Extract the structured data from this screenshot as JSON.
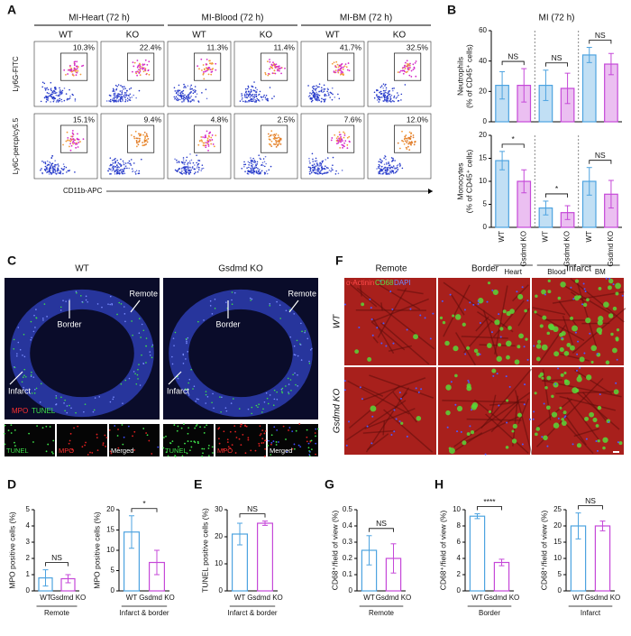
{
  "panel_labels": [
    "A",
    "B",
    "C",
    "D",
    "E",
    "F",
    "G",
    "H"
  ],
  "flow": {
    "columns": [
      {
        "title": "MI-Heart (72 h)",
        "groups": [
          "WT",
          "KO"
        ]
      },
      {
        "title": "MI-Blood (72 h)",
        "groups": [
          "WT",
          "KO"
        ]
      },
      {
        "title": "MI-BM (72 h)",
        "groups": [
          "WT",
          "KO"
        ]
      }
    ],
    "rows": [
      {
        "y_label": "Ly6G-FITC",
        "percentages": [
          "10.3%",
          "22.4%",
          "11.3%",
          "11.4%",
          "41.7%",
          "32.5%"
        ]
      },
      {
        "y_label": "Ly6C-percp/cy5.5",
        "percentages": [
          "15.1%",
          "9.4%",
          "4.8%",
          "2.5%",
          "7.6%",
          "12.0%"
        ]
      }
    ],
    "x_label": "CD11b-APC"
  },
  "tunel_mpo": {
    "columns": [
      "WT",
      "Gsdmd KO"
    ],
    "regions": [
      "Remote",
      "Border",
      "Infarct"
    ],
    "stains": [
      "MPO",
      "TUNEL"
    ],
    "insets": [
      "TUNEL",
      "MPO",
      "Merged"
    ]
  },
  "histology": {
    "stains": [
      "α-Actinin",
      "CD68",
      "DAPI"
    ],
    "columns": [
      "Remote",
      "Border",
      "Infarct"
    ],
    "rows": [
      "WT",
      "Gsdmd KO"
    ]
  },
  "chart_data": [
    {
      "type": "bar",
      "title": "MI (72 h)",
      "ylabel": [
        "Neutrophils",
        "(% of CD45⁺ cells)"
      ],
      "series": [
        {
          "name": "WT",
          "color": "#4da3e0",
          "values": [
            24,
            24,
            44
          ],
          "errors": [
            9,
            10,
            5
          ]
        },
        {
          "name": "Gsdmd KO",
          "color": "#c548d8",
          "values": [
            24,
            22,
            38
          ],
          "errors": [
            11,
            10,
            7
          ]
        }
      ],
      "annotations": [
        "NS",
        "NS",
        "NS"
      ],
      "ylim": [
        0,
        60
      ],
      "yticks": [
        0,
        20,
        40,
        60
      ]
    },
    {
      "type": "bar",
      "ylabel": [
        "Monocytes",
        "(% of CD45⁺ cells)"
      ],
      "categories": [
        "Heart",
        "Blood",
        "BM"
      ],
      "series": [
        {
          "name": "WT",
          "color": "#4da3e0",
          "values": [
            14.5,
            4.2,
            10
          ],
          "errors": [
            2,
            1.5,
            3
          ]
        },
        {
          "name": "Gsdmd KO",
          "color": "#c548d8",
          "values": [
            10,
            3.2,
            7.2
          ],
          "errors": [
            2.5,
            1.5,
            3
          ]
        }
      ],
      "annotations": [
        "*",
        "*",
        "NS"
      ],
      "ylim": [
        0,
        20
      ],
      "yticks": [
        0,
        5,
        10,
        15,
        20
      ]
    },
    {
      "type": "bar",
      "ylabel": [
        "MPO positive cells (%)"
      ],
      "categories": [
        "Remote"
      ],
      "series": [
        {
          "name": "WT",
          "color": "#4da3e0",
          "values": [
            0.8
          ],
          "errors": [
            0.5
          ]
        },
        {
          "name": "Gsdmd KO",
          "color": "#c548d8",
          "values": [
            0.75
          ],
          "errors": [
            0.25
          ]
        }
      ],
      "annotations": [
        "NS"
      ],
      "ylim": [
        0,
        5
      ],
      "yticks": [
        0,
        1,
        2,
        3,
        4,
        5
      ]
    },
    {
      "type": "bar",
      "ylabel": [
        "MPO positive cells (%)"
      ],
      "categories": [
        "Infarct & border"
      ],
      "series": [
        {
          "name": "WT",
          "color": "#4da3e0",
          "values": [
            14.5
          ],
          "errors": [
            4
          ]
        },
        {
          "name": "Gsdmd KO",
          "color": "#c548d8",
          "values": [
            7
          ],
          "errors": [
            3
          ]
        }
      ],
      "annotations": [
        "*"
      ],
      "ylim": [
        0,
        20
      ],
      "yticks": [
        0,
        5,
        10,
        15,
        20
      ]
    },
    {
      "type": "bar",
      "ylabel": [
        "TUNEL positive cells (%)"
      ],
      "categories": [
        "Infarct & border"
      ],
      "series": [
        {
          "name": "WT",
          "color": "#4da3e0",
          "values": [
            21
          ],
          "errors": [
            4
          ]
        },
        {
          "name": "Gsdmd KO",
          "color": "#c548d8",
          "values": [
            25
          ],
          "errors": [
            0.8
          ]
        }
      ],
      "annotations": [
        "NS"
      ],
      "ylim": [
        0,
        30
      ],
      "yticks": [
        0,
        10,
        20,
        30
      ]
    },
    {
      "type": "bar",
      "ylabel": [
        "CD68⁺/field of view (%)"
      ],
      "categories": [
        "Remote"
      ],
      "series": [
        {
          "name": "WT",
          "color": "#4da3e0",
          "values": [
            0.25
          ],
          "errors": [
            0.09
          ]
        },
        {
          "name": "Gsdmd KO",
          "color": "#c548d8",
          "values": [
            0.2
          ],
          "errors": [
            0.09
          ]
        }
      ],
      "annotations": [
        "NS"
      ],
      "ylim": [
        0,
        0.5
      ],
      "yticks": [
        0,
        0.1,
        0.2,
        0.3,
        0.4,
        0.5
      ]
    },
    {
      "type": "bar",
      "ylabel": [
        "CD68⁺/field of view (%)"
      ],
      "categories": [
        "Border"
      ],
      "series": [
        {
          "name": "WT",
          "color": "#4da3e0",
          "values": [
            9.2
          ],
          "errors": [
            0.3
          ]
        },
        {
          "name": "Gsdmd KO",
          "color": "#c548d8",
          "values": [
            3.5
          ],
          "errors": [
            0.4
          ]
        }
      ],
      "annotations": [
        "****"
      ],
      "ylim": [
        0,
        10
      ],
      "yticks": [
        0,
        2,
        4,
        6,
        8,
        10
      ]
    },
    {
      "type": "bar",
      "ylabel": [
        "CD68⁺/field of view (%)"
      ],
      "categories": [
        "Infarct"
      ],
      "series": [
        {
          "name": "WT",
          "color": "#4da3e0",
          "values": [
            20
          ],
          "errors": [
            4
          ]
        },
        {
          "name": "Gsdmd KO",
          "color": "#c548d8",
          "values": [
            20
          ],
          "errors": [
            1.5
          ]
        }
      ],
      "annotations": [
        "NS"
      ],
      "ylim": [
        0,
        25
      ],
      "yticks": [
        0,
        5,
        10,
        15,
        20,
        25
      ]
    }
  ]
}
